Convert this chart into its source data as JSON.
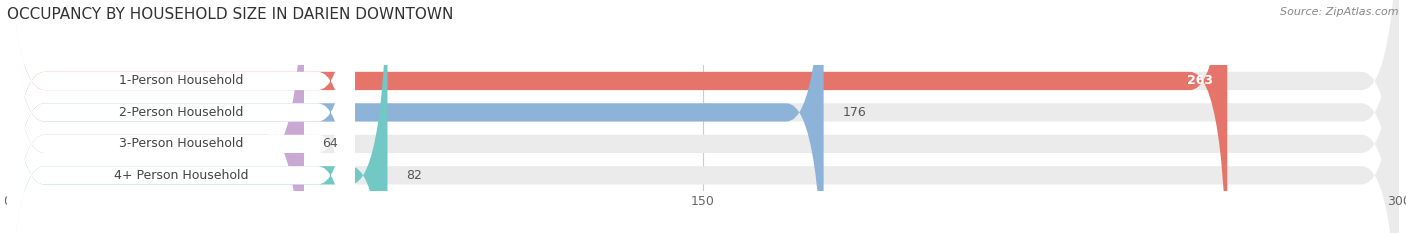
{
  "title": "OCCUPANCY BY HOUSEHOLD SIZE IN DARIEN DOWNTOWN",
  "source": "Source: ZipAtlas.com",
  "categories": [
    "1-Person Household",
    "2-Person Household",
    "3-Person Household",
    "4+ Person Household"
  ],
  "values": [
    263,
    176,
    64,
    82
  ],
  "bar_colors": [
    "#E5746A",
    "#8DB4D8",
    "#C9A8D4",
    "#72C8C4"
  ],
  "xlim": [
    0,
    300
  ],
  "xticks": [
    0,
    150,
    300
  ],
  "bar_height": 0.58,
  "figsize": [
    14.06,
    2.33
  ],
  "dpi": 100,
  "bg_color": "#ffffff",
  "bar_bg_color": "#ebebeb",
  "label_bg_color": "#ffffff",
  "title_fontsize": 11,
  "label_fontsize": 9,
  "value_fontsize": 9,
  "source_fontsize": 8,
  "value_inside_idx": [
    0
  ],
  "grid_color": "#cccccc",
  "title_color": "#333333",
  "source_color": "#888888",
  "label_text_color": "#444444",
  "value_outside_color": "#555555",
  "value_inside_color": "#ffffff"
}
